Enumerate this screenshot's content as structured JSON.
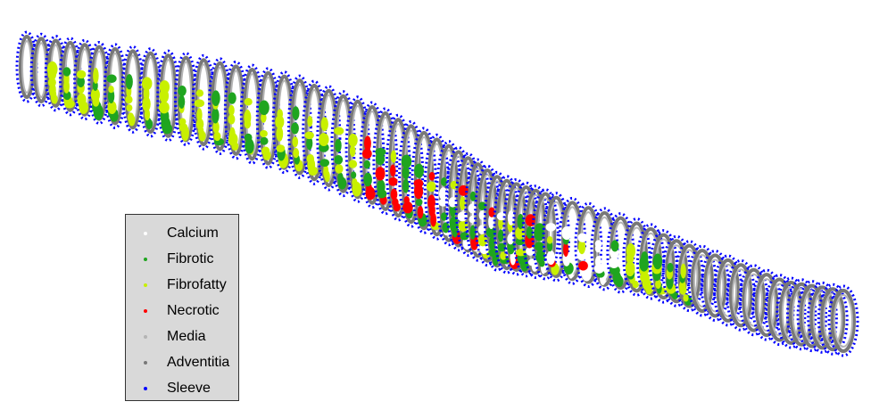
{
  "legend": {
    "items": [
      {
        "label": "Calcium",
        "color": "#ffffff"
      },
      {
        "label": "Fibrotic",
        "color": "#1fa51f"
      },
      {
        "label": "Fibrofatty",
        "color": "#c8f000"
      },
      {
        "label": "Necrotic",
        "color": "#ff0000"
      },
      {
        "label": "Media",
        "color": "#b4b4b4"
      },
      {
        "label": "Adventitia",
        "color": "#787878"
      },
      {
        "label": "Sleeve",
        "color": "#0000ff"
      }
    ]
  }
}
